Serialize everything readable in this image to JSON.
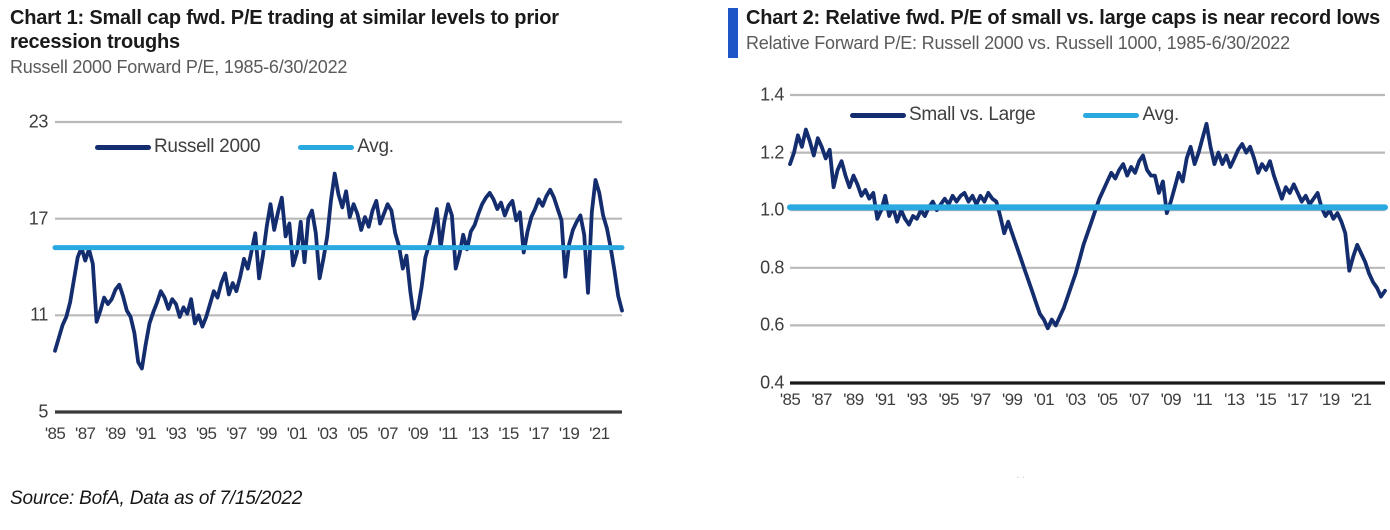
{
  "page": {
    "source_note": "Source: BofA, Data as of 7/15/2022",
    "footnote_dots": ".."
  },
  "colors": {
    "navy": "#142d6e",
    "cyan": "#29a9e0",
    "accent_bar": "#1e56c8",
    "grid": "#b9b9b9"
  },
  "chart_data": [
    {
      "type": "line",
      "title": "Chart 1: Small cap fwd. P/E trading at similar levels to prior recession troughs",
      "subtitle": "Russell 2000 Forward P/E, 1985-6/30/2022",
      "legend": [
        {
          "label": "Russell 2000",
          "color": "#142d6e"
        },
        {
          "label": "Avg.",
          "color": "#29a9e0"
        }
      ],
      "legend_position": "top-inside",
      "grid": "horizontal",
      "axis_color": "#3a3a3a",
      "ylim": [
        5,
        23
      ],
      "ytick_values": [
        23,
        17,
        11,
        5
      ],
      "ytick_labels": [
        "23",
        "17",
        "11",
        "5"
      ],
      "xlim": [
        1985,
        2022.5
      ],
      "xtick_start": 1985,
      "xtick_step": 2,
      "xtick_labels": [
        "'85",
        "'87",
        "'89",
        "'91",
        "'93",
        "'95",
        "'97",
        "'99",
        "'01",
        "'03",
        "'05",
        "'07",
        "'09",
        "'11",
        "'13",
        "'15",
        "'17",
        "'19",
        "'21"
      ],
      "avg": 15.2,
      "x_start": 1985,
      "x_step": 0.25,
      "series": [
        {
          "name": "Russell 2000",
          "color": "#142d6e",
          "values": [
            8.8,
            9.6,
            10.4,
            10.9,
            11.8,
            13.2,
            14.6,
            15.2,
            14.4,
            15.1,
            14.2,
            10.6,
            11.3,
            12.1,
            11.7,
            12.0,
            12.6,
            12.9,
            12.2,
            11.3,
            10.9,
            9.9,
            8.1,
            7.7,
            9.2,
            10.5,
            11.2,
            11.8,
            12.5,
            12.1,
            11.4,
            12.0,
            11.7,
            10.9,
            11.5,
            11.1,
            12.0,
            10.5,
            11.0,
            10.3,
            10.9,
            11.7,
            12.5,
            12.1,
            13.0,
            13.6,
            12.3,
            13.0,
            12.5,
            13.4,
            14.5,
            13.9,
            15.0,
            16.1,
            13.3,
            14.7,
            16.5,
            17.9,
            16.3,
            17.4,
            18.3,
            15.9,
            16.7,
            14.1,
            14.9,
            16.8,
            14.3,
            17.0,
            17.5,
            16.1,
            13.3,
            14.5,
            15.9,
            18.1,
            19.8,
            18.5,
            17.7,
            18.7,
            17.1,
            17.9,
            17.3,
            16.3,
            17.1,
            16.5,
            17.5,
            18.1,
            16.7,
            17.3,
            17.9,
            17.5,
            16.1,
            15.3,
            13.9,
            14.7,
            12.5,
            10.8,
            11.4,
            12.8,
            14.6,
            15.4,
            16.4,
            17.6,
            15.2,
            16.8,
            17.9,
            17.2,
            13.9,
            14.8,
            16.0,
            15.1,
            16.2,
            16.6,
            17.3,
            17.9,
            18.3,
            18.6,
            18.2,
            17.6,
            18.0,
            17.2,
            17.8,
            18.1,
            16.9,
            17.4,
            14.9,
            16.2,
            17.1,
            17.6,
            18.2,
            17.8,
            18.4,
            18.8,
            18.3,
            17.6,
            16.9,
            13.4,
            15.4,
            16.3,
            16.8,
            17.2,
            16.0,
            12.4,
            17.4,
            19.4,
            18.6,
            17.2,
            16.4,
            15.2,
            13.8,
            12.2,
            11.3
          ]
        }
      ]
    },
    {
      "type": "line",
      "title": "Chart 2: Relative fwd. P/E of small vs. large caps is near record lows",
      "subtitle": "Relative Forward P/E: Russell 2000 vs. Russell 1000, 1985-6/30/2022",
      "legend": [
        {
          "label": "Small vs. Large",
          "color": "#142d6e"
        },
        {
          "label": "Avg.",
          "color": "#29a9e0"
        }
      ],
      "legend_position": "top-inside",
      "grid": "horizontal",
      "axis_color": "#1a1a1a",
      "ylim": [
        0.4,
        1.4
      ],
      "ytick_values": [
        1.4,
        1.2,
        1.0,
        0.8,
        0.6,
        0.4
      ],
      "ytick_labels": [
        "1.4",
        "1.2",
        "1.0",
        "0.8",
        "0.6",
        "0.4"
      ],
      "xlim": [
        1985,
        2022.5
      ],
      "xtick_start": 1985,
      "xtick_step": 2,
      "xtick_labels": [
        "'85",
        "'87",
        "'89",
        "'91",
        "'93",
        "'95",
        "'97",
        "'99",
        "'01",
        "'03",
        "'05",
        "'07",
        "'09",
        "'11",
        "'13",
        "'15",
        "'17",
        "'19",
        "'21"
      ],
      "avg": 1.01,
      "x_start": 1985,
      "x_step": 0.25,
      "series": [
        {
          "name": "Small vs. Large",
          "color": "#142d6e",
          "values": [
            1.16,
            1.2,
            1.26,
            1.22,
            1.28,
            1.24,
            1.19,
            1.25,
            1.22,
            1.18,
            1.21,
            1.08,
            1.14,
            1.17,
            1.12,
            1.08,
            1.12,
            1.09,
            1.05,
            1.07,
            1.04,
            1.06,
            0.97,
            1.0,
            1.05,
            0.98,
            1.01,
            0.96,
            1.0,
            0.97,
            0.95,
            0.98,
            0.97,
            1.0,
            0.98,
            1.01,
            1.03,
            1.0,
            1.02,
            1.04,
            1.02,
            1.05,
            1.03,
            1.05,
            1.06,
            1.03,
            1.05,
            1.02,
            1.05,
            1.03,
            1.06,
            1.04,
            1.03,
            0.98,
            0.92,
            0.96,
            0.92,
            0.88,
            0.84,
            0.8,
            0.76,
            0.72,
            0.68,
            0.64,
            0.62,
            0.59,
            0.62,
            0.6,
            0.63,
            0.66,
            0.7,
            0.74,
            0.78,
            0.83,
            0.88,
            0.92,
            0.96,
            1.0,
            1.04,
            1.07,
            1.1,
            1.13,
            1.11,
            1.14,
            1.16,
            1.12,
            1.15,
            1.13,
            1.17,
            1.19,
            1.14,
            1.12,
            1.12,
            1.06,
            1.1,
            0.99,
            1.03,
            1.08,
            1.13,
            1.1,
            1.18,
            1.22,
            1.16,
            1.2,
            1.25,
            1.3,
            1.22,
            1.16,
            1.2,
            1.16,
            1.19,
            1.15,
            1.18,
            1.21,
            1.23,
            1.2,
            1.22,
            1.18,
            1.13,
            1.16,
            1.14,
            1.17,
            1.12,
            1.08,
            1.04,
            1.08,
            1.06,
            1.09,
            1.06,
            1.03,
            1.05,
            1.02,
            1.04,
            1.06,
            1.01,
            0.98,
            1.0,
            0.97,
            0.99,
            0.96,
            0.92,
            0.79,
            0.84,
            0.88,
            0.85,
            0.82,
            0.78,
            0.75,
            0.73,
            0.7,
            0.72
          ]
        }
      ]
    }
  ]
}
